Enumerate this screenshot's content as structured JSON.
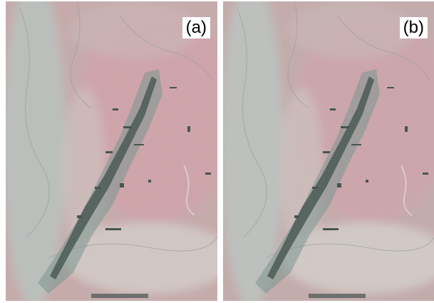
{
  "figure": {
    "panels": [
      {
        "id": "a",
        "label": "(a)"
      },
      {
        "id": "b",
        "label": "(b)"
      }
    ],
    "colors": {
      "terrain_base": "#c8a4a6",
      "terrain_pink": "#d79aa5",
      "terrain_light": "#d8d3cf",
      "terrain_teal": "#a9c7c5",
      "vegetation_dark": "#3a4e48",
      "vegetation_teal": "#5f8682"
    }
  }
}
